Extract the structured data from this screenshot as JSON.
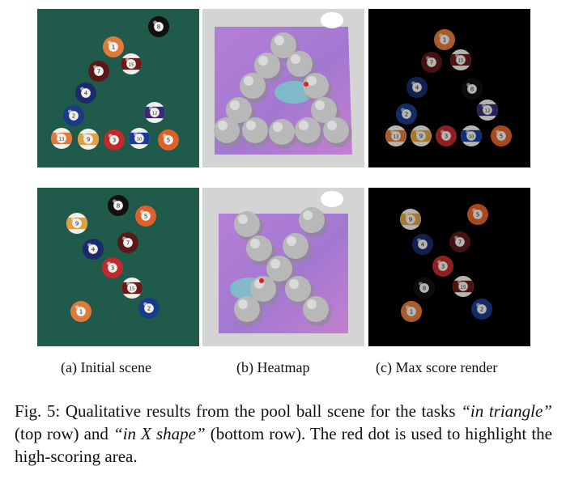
{
  "subcaptions": {
    "a": "(a) Initial scene",
    "b": "(b) Heatmap",
    "c": "(c) Max score render"
  },
  "caption": {
    "prefix": "Fig. 5: Qualitative results from the pool ball scene for the tasks ",
    "task1": "“in triangle”",
    "mid1": " (top row) and ",
    "task2": "“in X shape”",
    "mid2": " (bottom row). The red dot is used to highlight the high-scoring area."
  },
  "colors": {
    "felt": "#1f5a4a",
    "render_bg": "#000000",
    "heat_bg": "#d4d4d4",
    "red_dot": "#e02020"
  },
  "scenes": {
    "triangle_initial": [
      {
        "num": "8",
        "color": "#111111",
        "stripe": false
      },
      {
        "num": "1",
        "color": "#e07a3a",
        "stripe": false
      },
      {
        "num": "15",
        "color": "#6b1a1a",
        "stripe": true
      },
      {
        "num": "7",
        "color": "#5a1818",
        "stripe": false
      },
      {
        "num": "4",
        "color": "#1a2a6a",
        "stripe": false
      },
      {
        "num": "2",
        "color": "#1a3a8a",
        "stripe": false
      },
      {
        "num": "12",
        "color": "#3a2a7a",
        "stripe": true
      },
      {
        "num": "13",
        "color": "#e07a3a",
        "stripe": true
      },
      {
        "num": "9",
        "color": "#e0a040",
        "stripe": true
      },
      {
        "num": "3",
        "color": "#c02a2a",
        "stripe": false
      },
      {
        "num": "10",
        "color": "#1a3a9a",
        "stripe": true
      },
      {
        "num": "5",
        "color": "#e0602a",
        "stripe": false
      }
    ],
    "triangle_render": [
      {
        "num": "1",
        "color": "#e07a3a",
        "stripe": false
      },
      {
        "num": "7",
        "color": "#5a1818",
        "stripe": false
      },
      {
        "num": "15",
        "color": "#6b1a1a",
        "stripe": true
      },
      {
        "num": "4",
        "color": "#1a2a6a",
        "stripe": false
      },
      {
        "num": "8",
        "color": "#111111",
        "stripe": false
      },
      {
        "num": "2",
        "color": "#1a3a8a",
        "stripe": false
      },
      {
        "num": "12",
        "color": "#3a2a7a",
        "stripe": true
      },
      {
        "num": "13",
        "color": "#e07a3a",
        "stripe": true
      },
      {
        "num": "9",
        "color": "#e0a040",
        "stripe": true
      },
      {
        "num": "3",
        "color": "#c02a2a",
        "stripe": false
      },
      {
        "num": "10",
        "color": "#1a3a9a",
        "stripe": true
      },
      {
        "num": "5",
        "color": "#e0602a",
        "stripe": false
      }
    ],
    "x_initial": [
      {
        "num": "8",
        "color": "#111111",
        "stripe": false
      },
      {
        "num": "9",
        "color": "#e0a040",
        "stripe": true
      },
      {
        "num": "5",
        "color": "#e0602a",
        "stripe": false
      },
      {
        "num": "4",
        "color": "#1a2a6a",
        "stripe": false
      },
      {
        "num": "7",
        "color": "#5a1818",
        "stripe": false
      },
      {
        "num": "3",
        "color": "#c02a2a",
        "stripe": false
      },
      {
        "num": "15",
        "color": "#6b1a1a",
        "stripe": true
      },
      {
        "num": "1",
        "color": "#e07a3a",
        "stripe": false
      },
      {
        "num": "2",
        "color": "#1a3a8a",
        "stripe": false
      }
    ],
    "x_render": [
      {
        "num": "9",
        "color": "#e0a040",
        "stripe": true
      },
      {
        "num": "5",
        "color": "#e0602a",
        "stripe": false
      },
      {
        "num": "4",
        "color": "#1a2a6a",
        "stripe": false
      },
      {
        "num": "7",
        "color": "#5a1818",
        "stripe": false
      },
      {
        "num": "3",
        "color": "#c02a2a",
        "stripe": false
      },
      {
        "num": "8",
        "color": "#111111",
        "stripe": false
      },
      {
        "num": "15",
        "color": "#6b1a1a",
        "stripe": true
      },
      {
        "num": "1",
        "color": "#e07a3a",
        "stripe": false
      },
      {
        "num": "2",
        "color": "#1a3a8a",
        "stripe": false
      }
    ]
  }
}
